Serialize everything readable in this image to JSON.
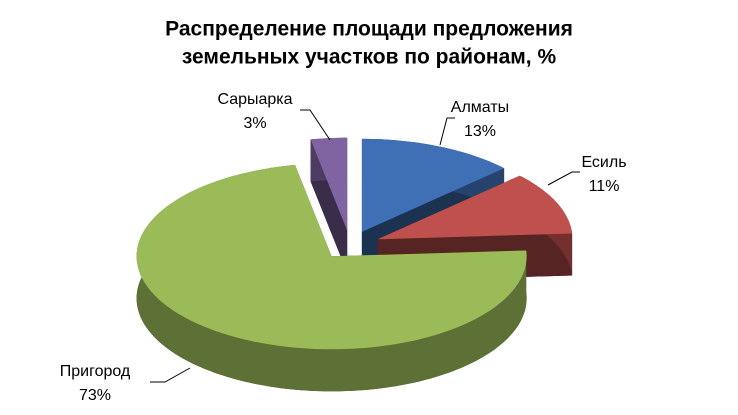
{
  "chart_data": {
    "type": "pie",
    "title": [
      "Распределение площади предложения",
      "земельных участков по районам, %"
    ],
    "categories": [
      "Алматы",
      "Есиль",
      "Пригород",
      "Сарыарка"
    ],
    "values": [
      13,
      11,
      73,
      3
    ],
    "value_labels": [
      "13%",
      "11%",
      "73%",
      "3%"
    ],
    "colors": [
      "#3f6fb5",
      "#c0504d",
      "#9bbb59",
      "#8064a2"
    ]
  }
}
